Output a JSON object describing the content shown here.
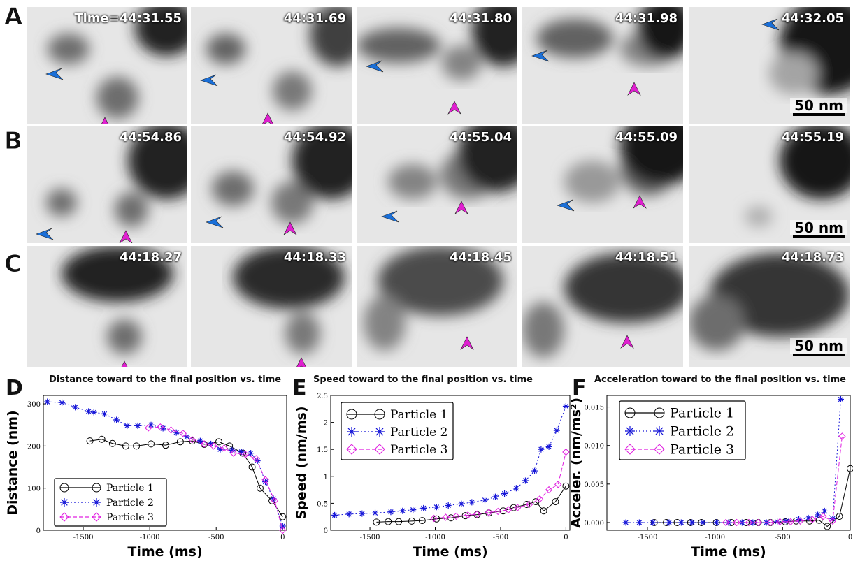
{
  "panels": {
    "A": {
      "label": "A",
      "timestamps": [
        "Time=44:31.55",
        "44:31.69",
        "44:31.80",
        "44:31.98",
        "44:32.05"
      ],
      "scale_text": "50 nm"
    },
    "B": {
      "label": "B",
      "timestamps": [
        "44:54.86",
        "44:54.92",
        "44:55.04",
        "44:55.09",
        "44:55.19"
      ],
      "scale_text": "50 nm"
    },
    "C": {
      "label": "C",
      "timestamps": [
        "44:18.27",
        "44:18.33",
        "44:18.45",
        "44:18.51",
        "44:18.73"
      ],
      "scale_text": "50 nm"
    }
  },
  "colors": {
    "particle1": "#000000",
    "particle2": "#1515d8",
    "particle3": "#e020e0",
    "arrow_blue": "#1a6fd8",
    "arrow_magenta": "#e020d0"
  },
  "chart_data": [
    {
      "panel": "D",
      "type": "line",
      "title": "Distance toward to the final position vs. time",
      "xlabel": "Time (ms)",
      "ylabel": "Distance (nm)",
      "xlim": [
        -1800,
        30
      ],
      "ylim": [
        0,
        320
      ],
      "xticks": [
        -1500,
        -1000,
        -500,
        0
      ],
      "yticks": [
        0,
        100,
        200,
        300
      ],
      "legend": "bottom-left",
      "series": [
        {
          "name": "Particle 1",
          "x": [
            -1450,
            -1360,
            -1280,
            -1180,
            -1100,
            -990,
            -880,
            -770,
            -680,
            -590,
            -480,
            -400,
            -300,
            -230,
            -170,
            -80,
            0
          ],
          "y": [
            212,
            216,
            206,
            200,
            200,
            205,
            202,
            210,
            212,
            204,
            210,
            200,
            183,
            150,
            100,
            70,
            32
          ]
        },
        {
          "name": "Particle 2",
          "x": [
            -1770,
            -1660,
            -1560,
            -1460,
            -1420,
            -1340,
            -1250,
            -1170,
            -1090,
            -990,
            -900,
            -800,
            -720,
            -620,
            -540,
            -470,
            -380,
            -310,
            -240,
            -190,
            -130,
            -70,
            0
          ],
          "y": [
            305,
            303,
            292,
            282,
            280,
            276,
            262,
            248,
            248,
            250,
            242,
            232,
            222,
            212,
            205,
            192,
            190,
            186,
            183,
            165,
            115,
            75,
            10
          ]
        },
        {
          "name": "Particle 3",
          "x": [
            -1010,
            -920,
            -840,
            -750,
            -680,
            -590,
            -520,
            -440,
            -370,
            -280,
            -200,
            -130,
            -60,
            0
          ],
          "y": [
            243,
            245,
            238,
            230,
            215,
            205,
            200,
            195,
            183,
            180,
            170,
            120,
            70,
            0
          ]
        }
      ]
    },
    {
      "panel": "E",
      "type": "line",
      "title": "Speed toward to the final position vs. time",
      "xlabel": "Time (ms)",
      "ylabel": "Speed (nm/ms)",
      "xlim": [
        -1800,
        30
      ],
      "ylim": [
        0,
        2.5
      ],
      "xticks": [
        -1500,
        -1000,
        -500,
        0
      ],
      "yticks": [
        0,
        0.5,
        1,
        1.5,
        2,
        2.5
      ],
      "legend": "top-left",
      "series": [
        {
          "name": "Particle 1",
          "x": [
            -1450,
            -1360,
            -1280,
            -1180,
            -1100,
            -990,
            -880,
            -770,
            -680,
            -590,
            -480,
            -400,
            -300,
            -230,
            -170,
            -80,
            0
          ],
          "y": [
            0.15,
            0.16,
            0.16,
            0.17,
            0.18,
            0.21,
            0.23,
            0.27,
            0.29,
            0.32,
            0.36,
            0.42,
            0.48,
            0.53,
            0.36,
            0.53,
            0.82
          ]
        },
        {
          "name": "Particle 2",
          "x": [
            -1770,
            -1660,
            -1560,
            -1460,
            -1340,
            -1250,
            -1170,
            -1090,
            -990,
            -900,
            -800,
            -720,
            -620,
            -540,
            -470,
            -380,
            -310,
            -240,
            -190,
            -130,
            -70,
            0
          ],
          "y": [
            0.28,
            0.3,
            0.31,
            0.32,
            0.34,
            0.36,
            0.38,
            0.41,
            0.43,
            0.46,
            0.49,
            0.52,
            0.56,
            0.62,
            0.68,
            0.78,
            0.92,
            1.1,
            1.5,
            1.55,
            1.85,
            2.3
          ]
        },
        {
          "name": "Particle 3",
          "x": [
            -1010,
            -920,
            -840,
            -750,
            -680,
            -590,
            -520,
            -440,
            -370,
            -280,
            -200,
            -130,
            -60,
            0
          ],
          "y": [
            0.22,
            0.24,
            0.26,
            0.28,
            0.3,
            0.33,
            0.35,
            0.38,
            0.42,
            0.48,
            0.58,
            0.75,
            0.85,
            1.45
          ]
        }
      ]
    },
    {
      "panel": "F",
      "type": "line",
      "title": "Acceleration toward to the final position vs. time",
      "xlabel": "Time (ms)",
      "ylabel": "Acceler. (nm/ms²)",
      "xlim": [
        -1800,
        0
      ],
      "ylim": [
        -0.001,
        0.0165
      ],
      "xticks": [
        -1500,
        -1000,
        -500,
        0
      ],
      "yticks": [
        0,
        0.005,
        0.01,
        0.015
      ],
      "ytick_labels": [
        "0.000",
        "0.005",
        "0.010",
        "0.015"
      ],
      "legend": "top-left",
      "series": [
        {
          "name": "Particle 1",
          "x": [
            -1450,
            -1360,
            -1280,
            -1180,
            -1100,
            -990,
            -880,
            -770,
            -680,
            -590,
            -480,
            -400,
            -300,
            -230,
            -170,
            -80,
            0
          ],
          "y": [
            0,
            0,
            0,
            0,
            0,
            0,
            0,
            0,
            0,
            0,
            0.0001,
            0.0002,
            0.0002,
            0.0003,
            -0.0005,
            0.0008,
            0.007
          ]
        },
        {
          "name": "Particle 2",
          "x": [
            -1660,
            -1560,
            -1460,
            -1340,
            -1250,
            -1170,
            -1090,
            -990,
            -900,
            -800,
            -720,
            -620,
            -540,
            -470,
            -380,
            -310,
            -240,
            -190,
            -130,
            -70
          ],
          "y": [
            0,
            0,
            0,
            0,
            0,
            0,
            0,
            0,
            0,
            0,
            0,
            0,
            0.0001,
            0.0002,
            0.0004,
            0.0006,
            0.001,
            0.0015,
            0.0005,
            0.016
          ]
        },
        {
          "name": "Particle 3",
          "x": [
            -920,
            -840,
            -750,
            -680,
            -590,
            -520,
            -440,
            -370,
            -280,
            -200,
            -130,
            -60
          ],
          "y": [
            0,
            0,
            0,
            0,
            0,
            0.0001,
            0.0001,
            0.0002,
            0.0004,
            0.0008,
            0.0002,
            0.0112
          ]
        }
      ]
    }
  ]
}
